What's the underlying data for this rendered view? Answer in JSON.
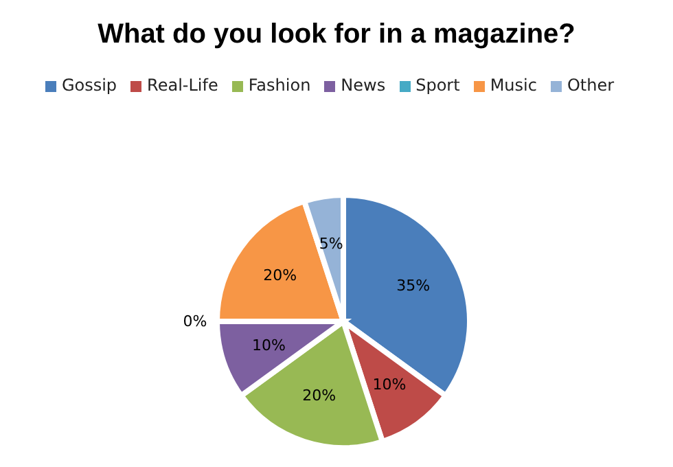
{
  "chart_data": {
    "type": "pie",
    "title": "What do you look for in a magazine?",
    "categories": [
      "Gossip",
      "Real-Life",
      "Fashion",
      "News",
      "Sport",
      "Music",
      "Other"
    ],
    "values": [
      35,
      10,
      20,
      10,
      0,
      20,
      5
    ],
    "colors": [
      "#4a7ebb",
      "#be4b48",
      "#98b954",
      "#7d60a0",
      "#46aac5",
      "#f79646",
      "#95b3d7"
    ],
    "value_labels": [
      "35%",
      "10%",
      "20%",
      "10%",
      "0%",
      "20%",
      "5%"
    ],
    "legend": "top"
  }
}
